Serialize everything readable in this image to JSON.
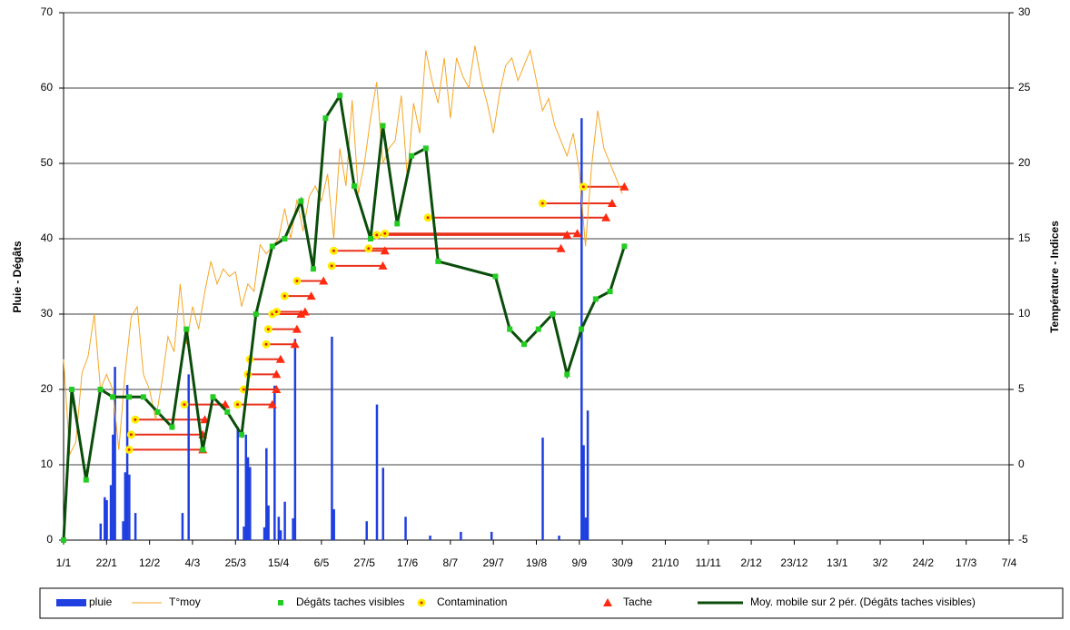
{
  "chart_data": {
    "type": "combo",
    "ylabel": "Pluie - Dégâts",
    "y2label": "Température - Indices",
    "xlim": [
      0,
      462
    ],
    "xticks": [
      {
        "value": 0,
        "label": "1/1"
      },
      {
        "value": 21,
        "label": "22/1"
      },
      {
        "value": 42,
        "label": "12/2"
      },
      {
        "value": 63,
        "label": "4/3"
      },
      {
        "value": 84,
        "label": "25/3"
      },
      {
        "value": 105,
        "label": "15/4"
      },
      {
        "value": 126,
        "label": "6/5"
      },
      {
        "value": 147,
        "label": "27/5"
      },
      {
        "value": 168,
        "label": "17/6"
      },
      {
        "value": 189,
        "label": "8/7"
      },
      {
        "value": 210,
        "label": "29/7"
      },
      {
        "value": 231,
        "label": "19/8"
      },
      {
        "value": 252,
        "label": "9/9"
      },
      {
        "value": 273,
        "label": "30/9"
      },
      {
        "value": 294,
        "label": "21/10"
      },
      {
        "value": 315,
        "label": "11/11"
      },
      {
        "value": 336,
        "label": "2/12"
      },
      {
        "value": 357,
        "label": "23/12"
      },
      {
        "value": 378,
        "label": "13/1"
      },
      {
        "value": 399,
        "label": "3/2"
      },
      {
        "value": 420,
        "label": "24/2"
      },
      {
        "value": 441,
        "label": "17/3"
      },
      {
        "value": 462,
        "label": "7/4"
      }
    ],
    "ylim": [
      0,
      70
    ],
    "yticks": [
      0,
      10,
      20,
      30,
      40,
      50,
      60,
      70
    ],
    "y2lim": [
      -5,
      30
    ],
    "y2ticks": [
      -5,
      0,
      5,
      10,
      15,
      20,
      25,
      30
    ],
    "grid": true,
    "series": [
      {
        "name": "pluie",
        "kind": "bar",
        "color": "#1f3fe0",
        "x": [
          18,
          20,
          21,
          23,
          24,
          25,
          29,
          30,
          31,
          32,
          35,
          58,
          61,
          85,
          88,
          89,
          90,
          91,
          98,
          99,
          100,
          103,
          105,
          106,
          108,
          112,
          113,
          131,
          132,
          148,
          153,
          156,
          167,
          179,
          194,
          209,
          234,
          242,
          253,
          254,
          255,
          256
        ],
        "values": [
          2.2,
          5.7,
          5.3,
          7.3,
          14,
          23,
          2.5,
          9,
          20.6,
          8.7,
          3.6,
          3.6,
          22,
          15,
          1.8,
          14,
          11,
          9.7,
          1.7,
          12.2,
          4.6,
          20.5,
          3.1,
          1.3,
          5.1,
          2.9,
          26.7,
          27,
          4.1,
          2.5,
          18,
          9.6,
          3.1,
          0.6,
          1.1,
          1.1,
          13.6,
          0.6,
          56,
          12.6,
          3,
          17.2
        ]
      },
      {
        "name": "T°moy",
        "kind": "line",
        "axis": "y2",
        "color": "#f5a623",
        "x": [
          0,
          3,
          6,
          9,
          12,
          15,
          18,
          21,
          24,
          27,
          30,
          33,
          36,
          39,
          42,
          45,
          48,
          51,
          54,
          57,
          60,
          63,
          66,
          69,
          72,
          75,
          78,
          81,
          84,
          87,
          90,
          93,
          96,
          99,
          102,
          105,
          108,
          111,
          114,
          117,
          120,
          123,
          126,
          129,
          132,
          135,
          138,
          141,
          144,
          147,
          150,
          153,
          156,
          159,
          162,
          165,
          168,
          171,
          174,
          177,
          180,
          183,
          186,
          189,
          192,
          195,
          198,
          201,
          204,
          207,
          210,
          213,
          216,
          219,
          222,
          225,
          228,
          231,
          234,
          237,
          240,
          243,
          246,
          249,
          252,
          255,
          258,
          261,
          264,
          267,
          270,
          273
        ],
        "values": [
          7,
          0.7,
          1.5,
          6.1,
          7.2,
          10,
          5,
          6,
          5,
          1,
          6,
          9.8,
          10.5,
          6,
          5,
          3,
          5.5,
          8.5,
          7.5,
          12,
          8,
          10.5,
          9,
          11.5,
          13.5,
          12,
          13,
          12.5,
          12.8,
          10.5,
          12,
          11.5,
          14.6,
          14,
          14.5,
          15,
          17,
          15,
          17.6,
          15.5,
          17.8,
          18.5,
          17.5,
          19.3,
          15,
          21,
          18.5,
          24.2,
          18,
          20,
          23,
          25.4,
          20,
          21,
          21.5,
          24.5,
          19,
          24,
          22,
          27.5,
          25.5,
          24,
          27,
          23,
          27,
          25.8,
          25,
          27.8,
          25.5,
          24,
          22,
          24.6,
          26.5,
          27,
          25.5,
          26.5,
          27.5,
          25.5,
          23.5,
          24.3,
          22.5,
          21.5,
          20.5,
          22,
          19.5,
          14.5,
          19.8,
          23.5,
          21,
          20,
          19,
          18
        ]
      },
      {
        "name": "Dégâts taches visibles",
        "kind": "square",
        "color": "#22cc22",
        "x": [
          0,
          4,
          11,
          18,
          24,
          32,
          39,
          46,
          53,
          60,
          68,
          73,
          80,
          87,
          94,
          102,
          108,
          116,
          122,
          128,
          135,
          142,
          150,
          156,
          163,
          170,
          177,
          183,
          211,
          218,
          225,
          232,
          239,
          246,
          253,
          260,
          267,
          274
        ],
        "values": [
          0,
          20,
          8,
          20,
          19,
          19,
          19,
          17,
          15,
          28,
          12,
          19,
          17,
          14,
          30,
          39,
          40,
          45,
          36,
          56,
          59,
          47,
          40,
          55,
          42,
          51,
          52,
          37,
          35,
          28,
          26,
          28,
          30,
          22,
          28,
          32,
          33,
          39
        ]
      },
      {
        "name": "Contamination",
        "kind": "circle",
        "color": "#e02010",
        "x": [
          32,
          33,
          35,
          59,
          85,
          88,
          90,
          91,
          99,
          100,
          102,
          104,
          108,
          114,
          131,
          132,
          149,
          153,
          157,
          178,
          234,
          254
        ],
        "values": [
          12,
          14,
          16,
          18,
          18,
          20,
          22,
          24,
          26,
          28,
          30,
          30.3,
          32.4,
          34.4,
          36.4,
          38.4,
          38.7,
          40.5,
          40.7,
          42.8,
          44.7,
          46.9
        ]
      },
      {
        "name": "Tache",
        "kind": "triangle",
        "color": "#ff2a10",
        "x": [
          68,
          68,
          69,
          79,
          102,
          104,
          104,
          106,
          113,
          114,
          116,
          118,
          121,
          127,
          156,
          157,
          243,
          246,
          251,
          265,
          268,
          274
        ],
        "values": [
          12,
          14,
          16,
          18,
          18,
          20,
          22,
          24,
          26,
          28,
          30,
          30.3,
          32.4,
          34.4,
          36.4,
          38.4,
          38.7,
          40.5,
          40.7,
          42.8,
          44.7,
          46.9
        ]
      },
      {
        "name": "Moy. mobile sur 2 pér. (Dégâts taches visibles)",
        "kind": "line",
        "color": "#0a4d0a",
        "x": [
          0,
          4,
          11,
          18,
          24,
          32,
          39,
          46,
          53,
          60,
          68,
          73,
          80,
          87,
          94,
          102,
          108,
          116,
          122,
          128,
          135,
          142,
          150,
          156,
          163,
          170,
          177,
          183,
          211,
          218,
          225,
          232,
          239,
          246,
          253,
          260,
          267,
          274
        ],
        "values": [
          0,
          20,
          8,
          20,
          19,
          19,
          19,
          17,
          15,
          28,
          12,
          19,
          17,
          14,
          30,
          39,
          40,
          45,
          36,
          56,
          59,
          47,
          40,
          55,
          42,
          51,
          52,
          37,
          35,
          28,
          26,
          28,
          30,
          22,
          28,
          32,
          33,
          39
        ]
      }
    ]
  }
}
